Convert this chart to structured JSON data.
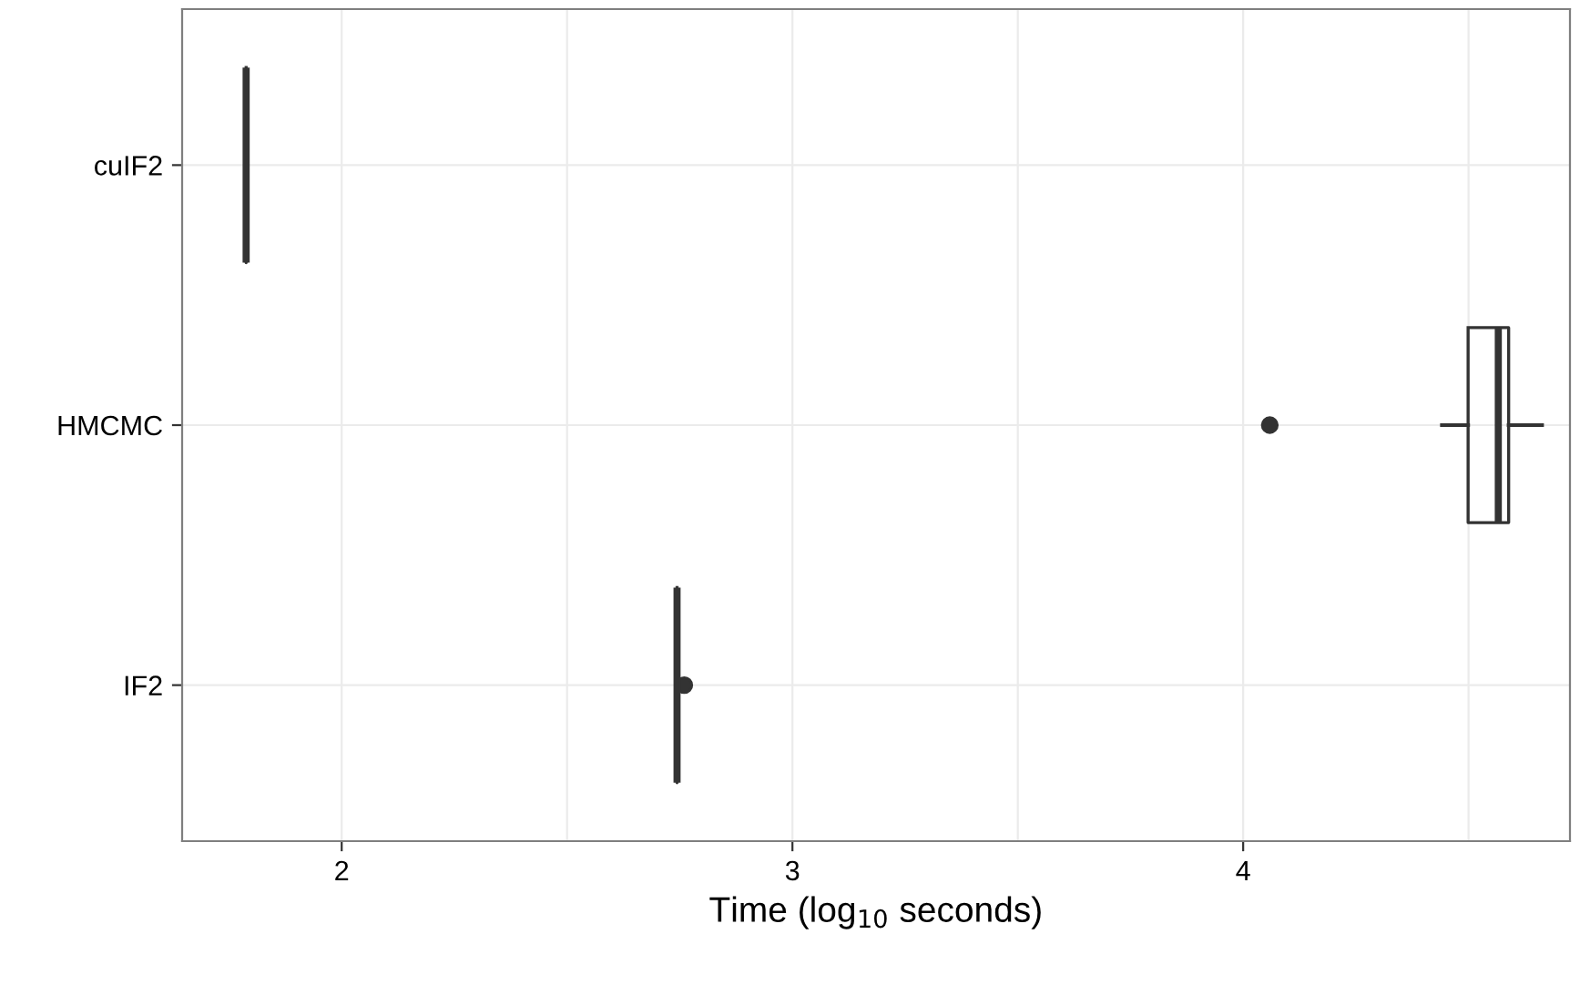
{
  "chart_data": {
    "type": "box",
    "orientation": "horizontal",
    "xlabel": "Time (log$_{10}$ seconds)",
    "categories": [
      "cuIF2",
      "HMCMC",
      "IF2"
    ],
    "boxes": [
      {
        "low": 1.788,
        "q1": 1.788,
        "median": 1.788,
        "q3": 1.788,
        "high": 1.788
      },
      {
        "low": 4.441,
        "q1": 4.499,
        "median": 4.566,
        "q3": 4.589,
        "high": 4.663,
        "outliers": [
          4.059
        ]
      },
      {
        "low": 2.744,
        "q1": 2.744,
        "median": 2.744,
        "q3": 2.744,
        "high": 2.744,
        "outliers": [
          2.76
        ]
      }
    ],
    "color": "#333333",
    "xlim": [
      1.646,
      4.725
    ],
    "xticks": [
      2,
      {
        "value": 2.5,
        "label": null
      },
      3,
      {
        "value": 3.5,
        "label": null
      },
      4,
      {
        "value": 4.5,
        "label": null
      }
    ],
    "grid": true
  }
}
